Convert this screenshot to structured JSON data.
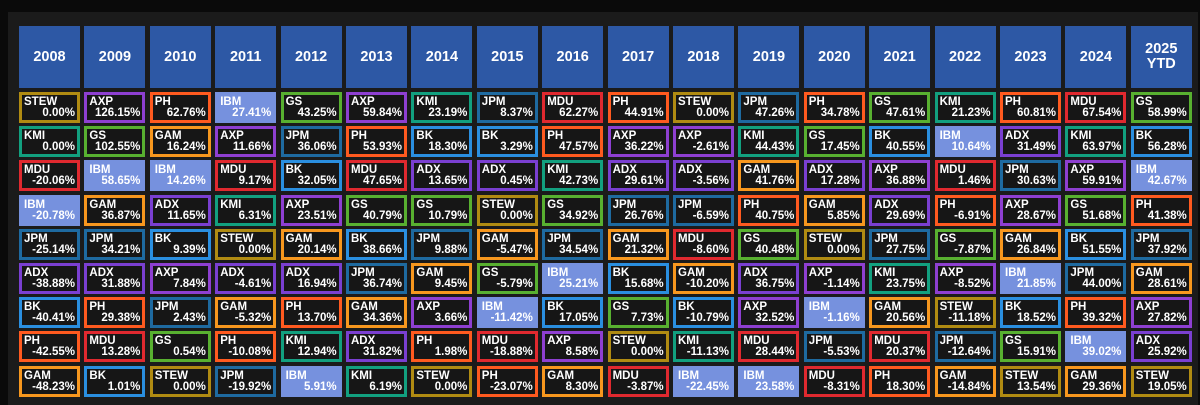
{
  "colors": {
    "header_bg": "#2d58a5",
    "highlight_bg": "#7691de",
    "tickers": {
      "STEW": "#b08b12",
      "KMI": "#12a07f",
      "MDU": "#e0292f",
      "IBM": "#7691de",
      "JPM": "#1e6aa0",
      "ADX": "#7a3fd1",
      "BK": "#2a8fe0",
      "PH": "#ff5a1f",
      "GAM": "#f7971e",
      "AXP": "#8e3fd1",
      "GS": "#58b030"
    }
  },
  "highlight_ticker": "IBM",
  "chart_data": {
    "type": "table",
    "years": [
      "2008",
      "2009",
      "2010",
      "2011",
      "2012",
      "2013",
      "2014",
      "2015",
      "2016",
      "2017",
      "2018",
      "2019",
      "2020",
      "2021",
      "2022",
      "2023",
      "2024",
      "2025\nYTD"
    ],
    "columns": [
      [
        [
          "STEW",
          "0.00%"
        ],
        [
          "KMI",
          "0.00%"
        ],
        [
          "MDU",
          "-20.06%"
        ],
        [
          "IBM",
          "-20.78%"
        ],
        [
          "JPM",
          "-25.14%"
        ],
        [
          "ADX",
          "-38.88%"
        ],
        [
          "BK",
          "-40.41%"
        ],
        [
          "PH",
          "-42.55%"
        ],
        [
          "GAM",
          "-48.23%"
        ]
      ],
      [
        [
          "AXP",
          "126.15%"
        ],
        [
          "GS",
          "102.55%"
        ],
        [
          "IBM",
          "58.65%"
        ],
        [
          "GAM",
          "36.87%"
        ],
        [
          "JPM",
          "34.21%"
        ],
        [
          "ADX",
          "31.88%"
        ],
        [
          "PH",
          "29.38%"
        ],
        [
          "MDU",
          "13.28%"
        ],
        [
          "BK",
          "1.01%"
        ]
      ],
      [
        [
          "PH",
          "62.76%"
        ],
        [
          "GAM",
          "16.24%"
        ],
        [
          "IBM",
          "14.26%"
        ],
        [
          "ADX",
          "11.65%"
        ],
        [
          "BK",
          "9.39%"
        ],
        [
          "AXP",
          "7.84%"
        ],
        [
          "JPM",
          "2.43%"
        ],
        [
          "GS",
          "0.54%"
        ],
        [
          "STEW",
          "0.00%"
        ]
      ],
      [
        [
          "IBM",
          "27.41%"
        ],
        [
          "AXP",
          "11.66%"
        ],
        [
          "MDU",
          "9.17%"
        ],
        [
          "KMI",
          "6.31%"
        ],
        [
          "STEW",
          "0.00%"
        ],
        [
          "ADX",
          "-4.61%"
        ],
        [
          "GAM",
          "-5.32%"
        ],
        [
          "PH",
          "-10.08%"
        ],
        [
          "JPM",
          "-19.92%"
        ]
      ],
      [
        [
          "GS",
          "43.25%"
        ],
        [
          "JPM",
          "36.06%"
        ],
        [
          "BK",
          "32.05%"
        ],
        [
          "AXP",
          "23.51%"
        ],
        [
          "GAM",
          "20.14%"
        ],
        [
          "ADX",
          "16.94%"
        ],
        [
          "PH",
          "13.70%"
        ],
        [
          "KMI",
          "12.94%"
        ],
        [
          "IBM",
          "5.91%"
        ]
      ],
      [
        [
          "AXP",
          "59.84%"
        ],
        [
          "PH",
          "53.93%"
        ],
        [
          "MDU",
          "47.65%"
        ],
        [
          "GS",
          "40.79%"
        ],
        [
          "BK",
          "38.66%"
        ],
        [
          "JPM",
          "36.74%"
        ],
        [
          "GAM",
          "34.36%"
        ],
        [
          "ADX",
          "31.82%"
        ],
        [
          "KMI",
          "6.19%"
        ]
      ],
      [
        [
          "KMI",
          "23.19%"
        ],
        [
          "BK",
          "18.30%"
        ],
        [
          "ADX",
          "13.65%"
        ],
        [
          "GS",
          "10.79%"
        ],
        [
          "JPM",
          "9.88%"
        ],
        [
          "GAM",
          "9.45%"
        ],
        [
          "AXP",
          "3.66%"
        ],
        [
          "PH",
          "1.98%"
        ],
        [
          "STEW",
          "0.00%"
        ]
      ],
      [
        [
          "JPM",
          "8.37%"
        ],
        [
          "BK",
          "3.29%"
        ],
        [
          "ADX",
          "0.45%"
        ],
        [
          "STEW",
          "0.00%"
        ],
        [
          "GAM",
          "-5.47%"
        ],
        [
          "GS",
          "-5.79%"
        ],
        [
          "IBM",
          "-11.42%"
        ],
        [
          "MDU",
          "-18.88%"
        ],
        [
          "PH",
          "-23.07%"
        ]
      ],
      [
        [
          "MDU",
          "62.27%"
        ],
        [
          "PH",
          "47.57%"
        ],
        [
          "KMI",
          "42.73%"
        ],
        [
          "GS",
          "34.92%"
        ],
        [
          "JPM",
          "34.54%"
        ],
        [
          "IBM",
          "25.21%"
        ],
        [
          "BK",
          "17.05%"
        ],
        [
          "AXP",
          "8.58%"
        ],
        [
          "GAM",
          "8.30%"
        ]
      ],
      [
        [
          "PH",
          "44.91%"
        ],
        [
          "AXP",
          "36.22%"
        ],
        [
          "ADX",
          "29.61%"
        ],
        [
          "JPM",
          "26.76%"
        ],
        [
          "GAM",
          "21.32%"
        ],
        [
          "BK",
          "15.68%"
        ],
        [
          "GS",
          "7.73%"
        ],
        [
          "STEW",
          "0.00%"
        ],
        [
          "MDU",
          "-3.87%"
        ]
      ],
      [
        [
          "STEW",
          "0.00%"
        ],
        [
          "AXP",
          "-2.61%"
        ],
        [
          "ADX",
          "-3.56%"
        ],
        [
          "JPM",
          "-6.59%"
        ],
        [
          "MDU",
          "-8.60%"
        ],
        [
          "GAM",
          "-10.20%"
        ],
        [
          "BK",
          "-10.79%"
        ],
        [
          "KMI",
          "-11.13%"
        ],
        [
          "IBM",
          "-22.45%"
        ]
      ],
      [
        [
          "JPM",
          "47.26%"
        ],
        [
          "KMI",
          "44.43%"
        ],
        [
          "GAM",
          "41.76%"
        ],
        [
          "PH",
          "40.75%"
        ],
        [
          "GS",
          "40.48%"
        ],
        [
          "ADX",
          "36.75%"
        ],
        [
          "AXP",
          "32.52%"
        ],
        [
          "MDU",
          "28.44%"
        ],
        [
          "IBM",
          "23.58%"
        ]
      ],
      [
        [
          "PH",
          "34.78%"
        ],
        [
          "GS",
          "17.45%"
        ],
        [
          "ADX",
          "17.28%"
        ],
        [
          "GAM",
          "5.85%"
        ],
        [
          "STEW",
          "0.00%"
        ],
        [
          "AXP",
          "-1.14%"
        ],
        [
          "IBM",
          "-1.16%"
        ],
        [
          "JPM",
          "-5.53%"
        ],
        [
          "MDU",
          "-8.31%"
        ]
      ],
      [
        [
          "GS",
          "47.61%"
        ],
        [
          "BK",
          "40.55%"
        ],
        [
          "AXP",
          "36.88%"
        ],
        [
          "ADX",
          "29.69%"
        ],
        [
          "JPM",
          "27.75%"
        ],
        [
          "KMI",
          "23.75%"
        ],
        [
          "GAM",
          "20.56%"
        ],
        [
          "MDU",
          "20.37%"
        ],
        [
          "PH",
          "18.30%"
        ]
      ],
      [
        [
          "KMI",
          "21.23%"
        ],
        [
          "IBM",
          "10.64%"
        ],
        [
          "MDU",
          "1.46%"
        ],
        [
          "PH",
          "-6.91%"
        ],
        [
          "GS",
          "-7.87%"
        ],
        [
          "AXP",
          "-8.52%"
        ],
        [
          "STEW",
          "-11.18%"
        ],
        [
          "JPM",
          "-12.64%"
        ],
        [
          "GAM",
          "-14.84%"
        ]
      ],
      [
        [
          "PH",
          "60.81%"
        ],
        [
          "ADX",
          "31.49%"
        ],
        [
          "JPM",
          "30.63%"
        ],
        [
          "AXP",
          "28.67%"
        ],
        [
          "GAM",
          "26.84%"
        ],
        [
          "IBM",
          "21.85%"
        ],
        [
          "BK",
          "18.52%"
        ],
        [
          "GS",
          "15.91%"
        ],
        [
          "STEW",
          "13.54%"
        ]
      ],
      [
        [
          "MDU",
          "67.54%"
        ],
        [
          "KMI",
          "63.97%"
        ],
        [
          "AXP",
          "59.91%"
        ],
        [
          "GS",
          "51.68%"
        ],
        [
          "BK",
          "51.55%"
        ],
        [
          "JPM",
          "44.00%"
        ],
        [
          "PH",
          "39.32%"
        ],
        [
          "IBM",
          "39.02%"
        ],
        [
          "GAM",
          "29.36%"
        ]
      ],
      [
        [
          "GS",
          "58.99%"
        ],
        [
          "BK",
          "56.28%"
        ],
        [
          "IBM",
          "42.67%"
        ],
        [
          "PH",
          "41.38%"
        ],
        [
          "JPM",
          "37.92%"
        ],
        [
          "GAM",
          "28.61%"
        ],
        [
          "AXP",
          "27.82%"
        ],
        [
          "ADX",
          "25.92%"
        ],
        [
          "STEW",
          "19.05%"
        ]
      ]
    ]
  }
}
